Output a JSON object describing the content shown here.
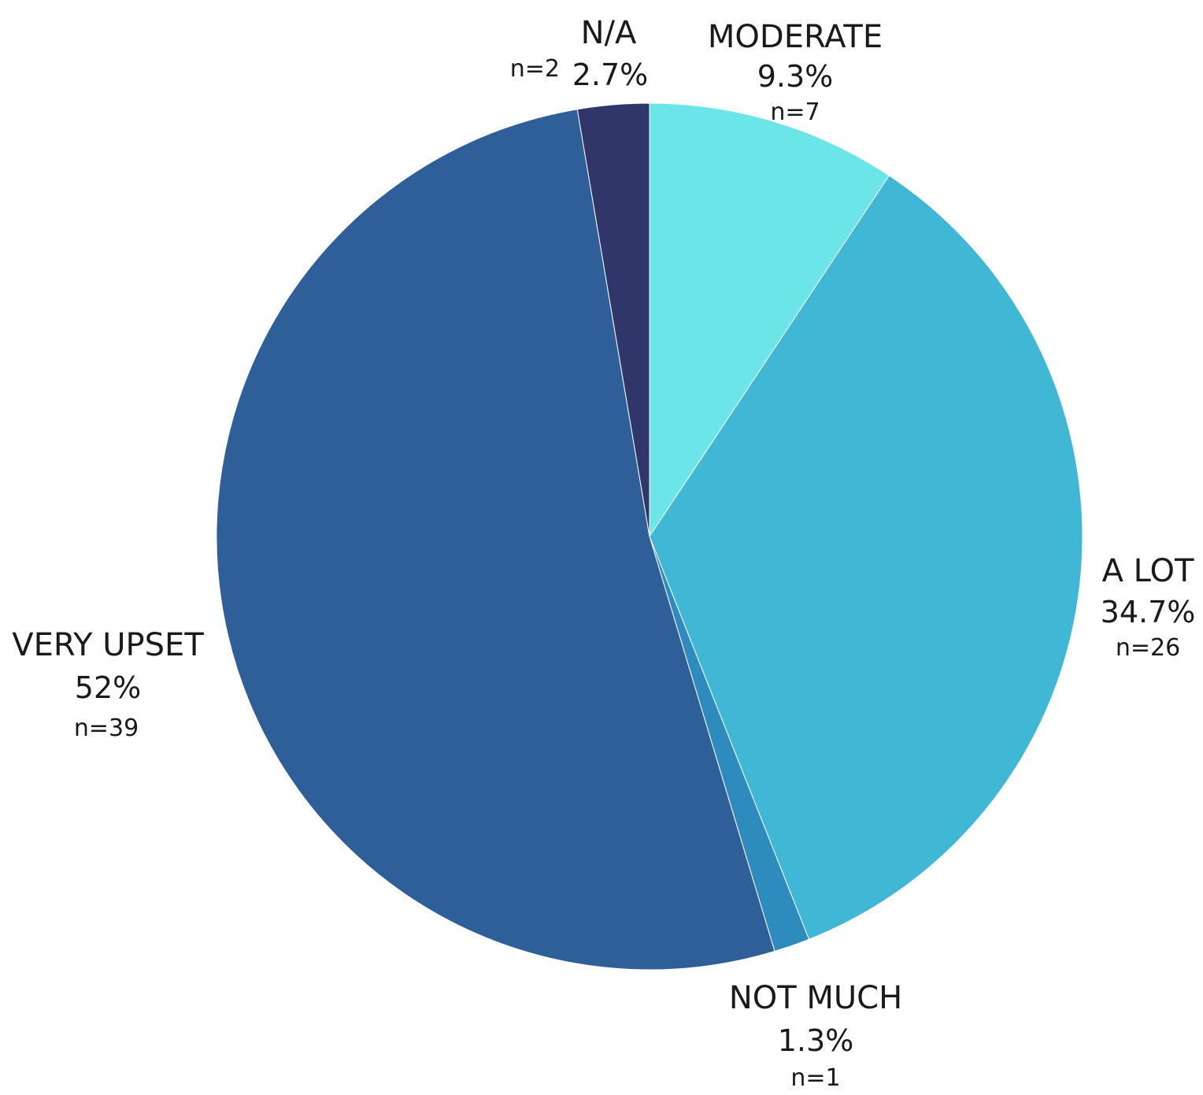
{
  "chart_data": {
    "type": "pie",
    "title": "",
    "start_angle_deg": 0,
    "direction": "clockwise",
    "slices": [
      {
        "label": "MODERATE",
        "percent_label": "9.3%",
        "n_label": "n=7",
        "value": 7,
        "percent": 9.3,
        "color": "#6ce5e8"
      },
      {
        "label": "A LOT",
        "percent_label": "34.7%",
        "n_label": "n=26",
        "value": 26,
        "percent": 34.7,
        "color": "#41b7d6"
      },
      {
        "label": "NOT MUCH",
        "percent_label": "1.3%",
        "n_label": "n=1",
        "value": 1,
        "percent": 1.3,
        "color": "#2e8bbe"
      },
      {
        "label": "VERY UPSET",
        "percent_label": "52%",
        "n_label": "n=39",
        "value": 39,
        "percent": 52,
        "color": "#2f5f98"
      },
      {
        "label": "N/A",
        "percent_label": "2.7%",
        "n_label": "n=2",
        "value": 2,
        "percent": 2.7,
        "color": "#303669"
      }
    ]
  }
}
